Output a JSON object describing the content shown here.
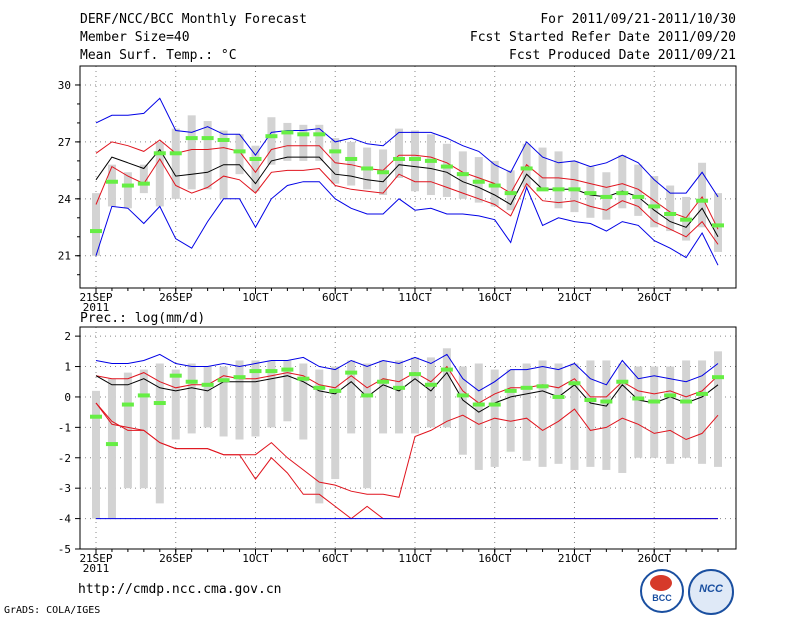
{
  "header": {
    "title": "DERF/NCC/BCC Monthly Forecast",
    "member_size": "Member Size=40",
    "variable": "Mean Surf. Temp.: °C",
    "period": "For 2011/09/21-2011/10/30",
    "refer_date": "Fcst Started Refer Date 2011/09/20",
    "produced_date": "Fcst Produced Date 2011/09/21"
  },
  "footer": {
    "url": "http://cmdp.ncc.cma.gov.cn",
    "grads": "GrADS: COLA/IGES",
    "logo_bcc": "BCC",
    "logo_ncc": "NCC"
  },
  "colors": {
    "box": "#d3d3d3",
    "mean": "#000000",
    "spread": "#e0141e",
    "extreme": "#0000e6",
    "marker": "#66ee44",
    "grid": "#888888"
  },
  "chart_data": [
    {
      "type": "line",
      "title": "Mean Surf. Temp.: °C",
      "x": [
        "09/21",
        "09/22",
        "09/23",
        "09/24",
        "09/25",
        "09/26",
        "09/27",
        "09/28",
        "09/29",
        "09/30",
        "10/01",
        "10/02",
        "10/03",
        "10/04",
        "10/05",
        "10/06",
        "10/07",
        "10/08",
        "10/09",
        "10/10",
        "10/11",
        "10/12",
        "10/13",
        "10/14",
        "10/15",
        "10/16",
        "10/17",
        "10/18",
        "10/19",
        "10/20",
        "10/21",
        "10/22",
        "10/23",
        "10/24",
        "10/25",
        "10/26",
        "10/27",
        "10/28",
        "10/29",
        "10/30"
      ],
      "xtick_labels": [
        {
          "index": 0,
          "label": "21SEP",
          "sublabel": "2011"
        },
        {
          "index": 5,
          "label": "26SEP"
        },
        {
          "index": 10,
          "label": "1OCT"
        },
        {
          "index": 15,
          "label": "6OCT"
        },
        {
          "index": 20,
          "label": "11OCT"
        },
        {
          "index": 25,
          "label": "16OCT"
        },
        {
          "index": 30,
          "label": "21OCT"
        },
        {
          "index": 35,
          "label": "26OCT"
        }
      ],
      "ylim": [
        19.3,
        31.0
      ],
      "yticks": [
        21,
        24,
        27,
        30
      ],
      "grid": true,
      "box_low": [
        21.0,
        23.6,
        23.5,
        24.3,
        23.6,
        24.0,
        24.5,
        24.5,
        24.0,
        25.3,
        24.4,
        25.8,
        26.0,
        26.0,
        26.0,
        24.8,
        24.7,
        24.5,
        24.2,
        25.1,
        24.4,
        24.2,
        24.1,
        24.0,
        23.8,
        23.6,
        23.4,
        24.6,
        24.4,
        23.5,
        23.3,
        23.0,
        22.9,
        23.5,
        23.1,
        22.5,
        22.3,
        21.8,
        22.5,
        21.2
      ],
      "box_high": [
        24.3,
        25.8,
        25.4,
        25.8,
        27.0,
        27.7,
        28.4,
        28.1,
        27.6,
        27.4,
        26.8,
        28.3,
        28.0,
        27.9,
        27.9,
        27.2,
        27.0,
        26.7,
        26.6,
        27.7,
        27.6,
        27.4,
        26.9,
        26.5,
        26.2,
        26.0,
        25.5,
        26.9,
        26.7,
        26.5,
        26.0,
        25.7,
        25.4,
        26.3,
        25.8,
        25.2,
        24.7,
        24.1,
        25.9,
        24.3
      ],
      "markers": [
        22.3,
        24.9,
        24.7,
        24.8,
        26.4,
        26.4,
        27.2,
        27.2,
        27.1,
        26.5,
        26.1,
        27.3,
        27.5,
        27.4,
        27.4,
        26.5,
        26.1,
        25.6,
        25.4,
        26.1,
        26.1,
        26.0,
        25.7,
        25.3,
        24.9,
        24.7,
        24.3,
        25.6,
        24.5,
        24.5,
        24.5,
        24.3,
        24.1,
        24.3,
        24.1,
        23.6,
        23.2,
        22.9,
        23.9,
        22.6
      ],
      "series": [
        {
          "name": "ensemble-max",
          "color": "#0000e6",
          "values": [
            28.0,
            28.4,
            28.4,
            28.5,
            29.3,
            27.6,
            27.5,
            27.8,
            27.4,
            27.4,
            26.3,
            27.5,
            27.6,
            27.6,
            27.7,
            27.0,
            27.2,
            26.9,
            26.8,
            27.5,
            27.5,
            27.5,
            27.2,
            26.8,
            26.5,
            25.8,
            25.4,
            27.0,
            26.2,
            25.9,
            26.0,
            25.7,
            25.9,
            26.3,
            25.9,
            25.0,
            24.3,
            24.3,
            25.4,
            24.1
          ]
        },
        {
          "name": "mean-plus-sd",
          "color": "#e0141e",
          "values": [
            26.4,
            27.0,
            26.8,
            26.5,
            27.1,
            26.4,
            26.6,
            26.6,
            26.7,
            26.5,
            25.4,
            26.6,
            26.8,
            26.8,
            26.8,
            25.9,
            25.8,
            25.6,
            25.5,
            26.3,
            26.3,
            26.2,
            25.9,
            25.4,
            25.1,
            24.8,
            24.3,
            25.8,
            25.1,
            25.1,
            25.0,
            24.8,
            24.6,
            24.8,
            24.5,
            23.9,
            23.3,
            23.0,
            24.1,
            22.4
          ]
        },
        {
          "name": "ensemble-mean",
          "color": "#000000",
          "values": [
            25.0,
            26.2,
            25.9,
            25.6,
            26.6,
            25.2,
            25.3,
            25.4,
            25.8,
            25.8,
            24.8,
            26.0,
            26.2,
            26.2,
            26.2,
            25.3,
            25.2,
            25.0,
            24.9,
            25.8,
            25.7,
            25.6,
            25.4,
            24.9,
            24.6,
            24.2,
            23.7,
            25.3,
            24.5,
            24.5,
            24.5,
            24.2,
            24.1,
            24.4,
            24.1,
            23.4,
            22.8,
            22.5,
            23.5,
            22.0
          ]
        },
        {
          "name": "mean-minus-sd",
          "color": "#e0141e",
          "values": [
            23.7,
            25.7,
            25.2,
            24.8,
            26.1,
            24.7,
            24.3,
            24.6,
            25.2,
            25.0,
            24.3,
            25.4,
            25.5,
            25.5,
            25.6,
            24.7,
            24.5,
            24.4,
            24.3,
            25.3,
            24.9,
            24.9,
            24.6,
            24.3,
            24.0,
            23.7,
            23.1,
            24.8,
            23.9,
            23.8,
            23.9,
            23.6,
            23.4,
            23.9,
            23.6,
            22.8,
            22.4,
            22.0,
            22.8,
            21.6
          ]
        },
        {
          "name": "ensemble-min",
          "color": "#0000e6",
          "values": [
            21.0,
            23.6,
            23.5,
            22.7,
            23.6,
            21.9,
            21.4,
            22.8,
            24.0,
            24.0,
            22.5,
            24.0,
            24.7,
            24.9,
            24.9,
            24.0,
            23.5,
            23.2,
            23.2,
            24.0,
            23.4,
            23.5,
            23.2,
            23.2,
            23.1,
            22.9,
            21.7,
            24.6,
            22.6,
            23.0,
            22.8,
            22.7,
            22.3,
            22.8,
            22.6,
            21.8,
            21.4,
            20.9,
            22.2,
            20.5
          ]
        }
      ]
    },
    {
      "type": "line",
      "title": "Prec.: log(mm/d)",
      "x": [
        "09/21",
        "09/22",
        "09/23",
        "09/24",
        "09/25",
        "09/26",
        "09/27",
        "09/28",
        "09/29",
        "09/30",
        "10/01",
        "10/02",
        "10/03",
        "10/04",
        "10/05",
        "10/06",
        "10/07",
        "10/08",
        "10/09",
        "10/10",
        "10/11",
        "10/12",
        "10/13",
        "10/14",
        "10/15",
        "10/16",
        "10/17",
        "10/18",
        "10/19",
        "10/20",
        "10/21",
        "10/22",
        "10/23",
        "10/24",
        "10/25",
        "10/26",
        "10/27",
        "10/28",
        "10/29",
        "10/30"
      ],
      "xtick_labels": [
        {
          "index": 0,
          "label": "21SEP",
          "sublabel": "2011"
        },
        {
          "index": 5,
          "label": "26SEP"
        },
        {
          "index": 10,
          "label": "1OCT"
        },
        {
          "index": 15,
          "label": "6OCT"
        },
        {
          "index": 20,
          "label": "11OCT"
        },
        {
          "index": 25,
          "label": "16OCT"
        },
        {
          "index": 30,
          "label": "21OCT"
        },
        {
          "index": 35,
          "label": "26OCT"
        }
      ],
      "ylim": [
        -5,
        2.3
      ],
      "yticks": [
        -5,
        -4,
        -3,
        -2,
        -1,
        0,
        1,
        2
      ],
      "grid": true,
      "box_low": [
        -4.0,
        -4.0,
        -3.0,
        -3.0,
        -3.5,
        -1.4,
        -1.2,
        -1.0,
        -1.3,
        -1.4,
        -1.3,
        -1.0,
        -0.8,
        -1.4,
        -3.5,
        -2.7,
        -1.2,
        -3.0,
        -1.2,
        -1.2,
        -1.2,
        -1.0,
        -1.0,
        -1.9,
        -2.4,
        -2.3,
        -1.8,
        -2.1,
        -2.3,
        -2.2,
        -2.4,
        -2.3,
        -2.4,
        -2.5,
        -2.0,
        -2.0,
        -2.2,
        -2.0,
        -2.2,
        -2.3
      ],
      "box_high": [
        0.2,
        0.6,
        0.8,
        0.9,
        1.1,
        0.9,
        1.1,
        1.0,
        1.0,
        1.2,
        1.2,
        1.2,
        1.2,
        1.1,
        0.9,
        1.0,
        1.2,
        1.1,
        1.2,
        1.2,
        1.3,
        1.3,
        1.6,
        1.0,
        1.1,
        0.9,
        0.9,
        1.1,
        1.2,
        1.1,
        1.1,
        1.2,
        1.2,
        1.1,
        1.0,
        1.0,
        1.0,
        1.2,
        1.2,
        1.5
      ],
      "markers": [
        -0.65,
        -1.55,
        -0.25,
        0.05,
        -0.2,
        0.7,
        0.5,
        0.4,
        0.55,
        0.65,
        0.85,
        0.85,
        0.9,
        0.6,
        0.3,
        0.2,
        0.8,
        0.05,
        0.5,
        0.3,
        0.75,
        0.4,
        0.9,
        0.05,
        -0.25,
        -0.25,
        0.2,
        0.3,
        0.35,
        0.0,
        0.45,
        -0.1,
        -0.15,
        0.5,
        -0.05,
        -0.15,
        0.05,
        -0.15,
        0.1,
        0.65
      ],
      "series": [
        {
          "name": "ensemble-max",
          "color": "#0000e6",
          "values": [
            1.2,
            1.1,
            1.1,
            1.2,
            1.4,
            1.1,
            1.0,
            1.0,
            1.1,
            1.0,
            1.1,
            1.2,
            1.2,
            1.3,
            1.0,
            0.9,
            1.2,
            1.0,
            1.2,
            1.1,
            1.3,
            1.1,
            1.4,
            0.6,
            0.2,
            0.5,
            0.9,
            0.9,
            1.0,
            0.9,
            1.1,
            0.6,
            0.4,
            1.2,
            0.6,
            0.7,
            0.6,
            0.5,
            0.7,
            1.1
          ]
        },
        {
          "name": "mean-plus-sd",
          "color": "#e0141e",
          "values": [
            0.7,
            0.6,
            0.6,
            0.8,
            0.5,
            0.3,
            0.4,
            0.4,
            0.7,
            0.6,
            0.6,
            0.7,
            0.8,
            0.7,
            0.4,
            0.3,
            0.7,
            0.3,
            0.6,
            0.5,
            0.8,
            0.5,
            1.0,
            0.2,
            -0.2,
            0.1,
            0.3,
            0.3,
            0.4,
            0.3,
            0.6,
            0.0,
            0.0,
            0.5,
            0.2,
            0.1,
            0.2,
            0.0,
            0.2,
            0.7
          ]
        },
        {
          "name": "ensemble-mean",
          "color": "#000000",
          "values": [
            0.7,
            0.4,
            0.4,
            0.6,
            0.3,
            0.2,
            0.3,
            0.2,
            0.5,
            0.5,
            0.5,
            0.6,
            0.7,
            0.5,
            0.2,
            0.1,
            0.5,
            0.0,
            0.4,
            0.2,
            0.6,
            0.2,
            0.8,
            -0.1,
            -0.5,
            -0.2,
            0.0,
            0.1,
            0.2,
            0.0,
            0.4,
            -0.2,
            -0.3,
            0.4,
            -0.1,
            -0.2,
            0.0,
            -0.2,
            0.0,
            0.4
          ]
        },
        {
          "name": "mean-minus-sd",
          "color": "#e0141e",
          "values": [
            -0.2,
            -0.8,
            -1.1,
            -1.1,
            -1.5,
            -1.7,
            -1.7,
            -1.7,
            -1.9,
            -1.9,
            -2.7,
            -2.0,
            -2.5,
            -3.2,
            -3.2,
            -3.6,
            -4.0,
            -3.6,
            -4.0,
            -4.0,
            -4.0,
            -4.0,
            -4.0,
            -4.0,
            -4.0,
            -4.0,
            -4.0,
            -4.0,
            -4.0,
            -4.0,
            -4.0,
            -4.0,
            -4.0,
            -4.0,
            -4.0,
            -4.0,
            -4.0,
            -4.0,
            -4.0,
            -4.0
          ]
        },
        {
          "name": "ensemble-min",
          "color": "#0000e6",
          "values": [
            -4.0,
            -4.0,
            -4.0,
            -4.0,
            -4.0,
            -4.0,
            -4.0,
            -4.0,
            -4.0,
            -4.0,
            -4.0,
            -4.0,
            -4.0,
            -4.0,
            -4.0,
            -4.0,
            -4.0,
            -4.0,
            -4.0,
            -4.0,
            -4.0,
            -4.0,
            -4.0,
            -4.0,
            -4.0,
            -4.0,
            -4.0,
            -4.0,
            -4.0,
            -4.0,
            -4.0,
            -4.0,
            -4.0,
            -4.0,
            -4.0,
            -4.0,
            -4.0,
            -4.0,
            -4.0,
            -4.0
          ]
        },
        {
          "name": "lower-spread-extra",
          "color": "#e0141e",
          "values": [
            -0.2,
            -0.9,
            -1.0,
            -1.1,
            -1.5,
            -1.7,
            -1.7,
            -1.7,
            -1.9,
            -1.9,
            -1.9,
            -1.5,
            -2.0,
            -2.4,
            -2.8,
            -2.9,
            -3.1,
            -3.2,
            -3.2,
            -3.3,
            -1.3,
            -1.1,
            -0.8,
            -0.6,
            -0.9,
            -0.7,
            -0.8,
            -0.7,
            -1.1,
            -0.8,
            -0.4,
            -1.1,
            -1.0,
            -0.7,
            -0.9,
            -1.2,
            -1.1,
            -1.4,
            -1.2,
            -0.6
          ]
        }
      ]
    }
  ]
}
